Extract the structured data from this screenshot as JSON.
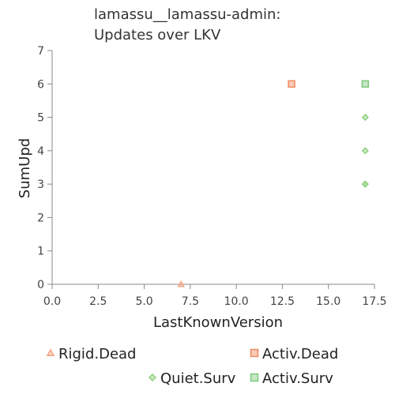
{
  "chart_data": {
    "type": "scatter",
    "title": [
      "lamassu__lamassu-admin:",
      "Updates over LKV"
    ],
    "xlabel": "LastKnownVersion",
    "ylabel": "SumUpd",
    "xlim": [
      0,
      17.5
    ],
    "ylim": [
      0,
      7
    ],
    "xticks": [
      "0.0",
      "2.5",
      "5.0",
      "7.5",
      "10.0",
      "12.5",
      "15.0",
      "17.5"
    ],
    "yticks": [
      "0",
      "1",
      "2",
      "3",
      "4",
      "5",
      "6",
      "7"
    ],
    "grid": false,
    "legend_placement": "bottom",
    "series": [
      {
        "name": "Rigid.Dead",
        "marker": "triangle",
        "color": "#f4a582",
        "points": [
          [
            7,
            0
          ]
        ]
      },
      {
        "name": "Activ.Dead",
        "marker": "square",
        "color": "#ef8a62",
        "points": [
          [
            13,
            6
          ]
        ]
      },
      {
        "name": "Quiet.Surv",
        "marker": "diamond",
        "color": "#8fd07e",
        "points": [
          [
            17,
            3
          ],
          [
            17,
            3
          ],
          [
            17,
            4
          ],
          [
            17,
            5
          ]
        ]
      },
      {
        "name": "Activ.Surv",
        "marker": "square",
        "color": "#7fc97f",
        "points": [
          [
            17,
            6
          ]
        ]
      }
    ]
  }
}
